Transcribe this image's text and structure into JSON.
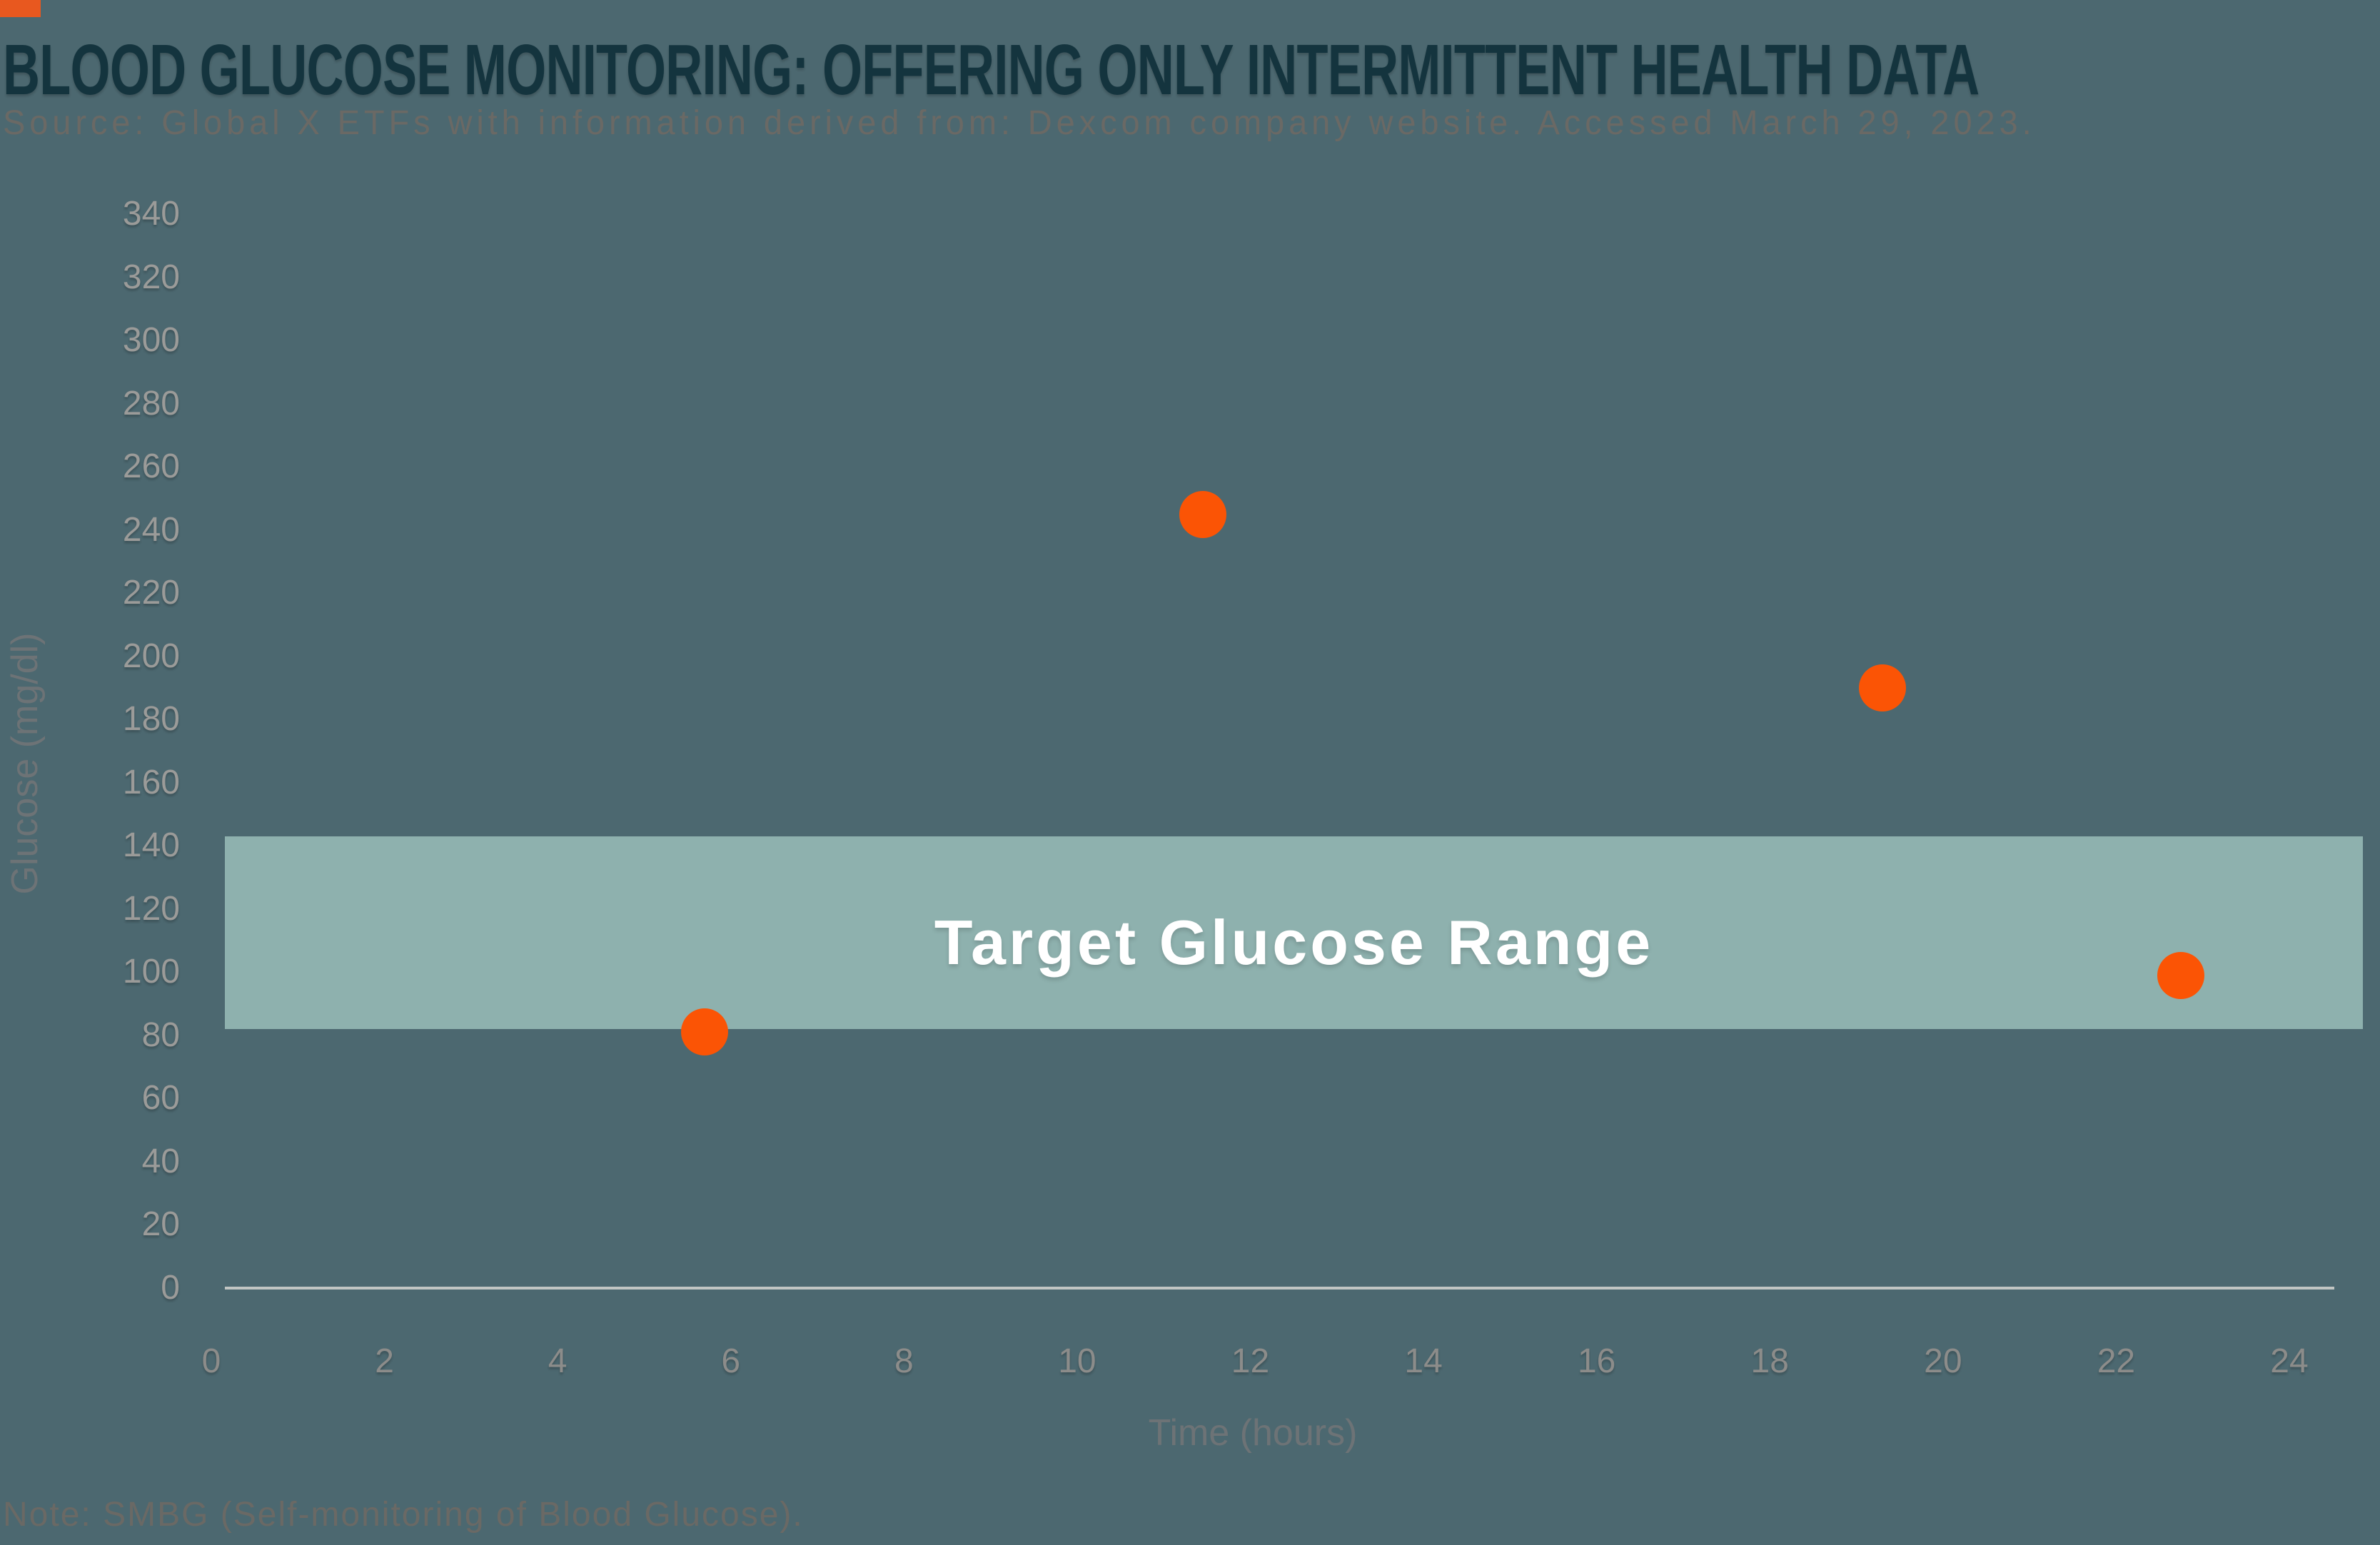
{
  "page": {
    "background_color": "#4C6870",
    "accent_square_color": "#E8581F"
  },
  "header": {
    "title": "BLOOD GLUCOSE MONITORING: OFFERING ONLY INTERMITTENT HEALTH DATA",
    "title_color": "#14343E",
    "source": "Source: Global X ETFs with information derived from: Dexcom company website. Accessed March 29, 2023.",
    "source_color": "#6A6965"
  },
  "footer": {
    "note": "Note: SMBG (Self-monitoring of Blood Glucose).",
    "note_color": "#6A6965"
  },
  "chart_data": {
    "type": "scatter",
    "title": "BLOOD GLUCOSE MONITORING: OFFERING ONLY INTERMITTENT HEALTH DATA",
    "xlabel": "Time (hours)",
    "ylabel": "Glucose (mg/dl)",
    "xlim": [
      0,
      24
    ],
    "xtick_step": 2,
    "ylim": [
      0,
      340
    ],
    "ytick_step": 20,
    "grid": false,
    "legend": "none",
    "points": [
      {
        "x": 5.7,
        "y": 81
      },
      {
        "x": 11.45,
        "y": 245
      },
      {
        "x": 19.3,
        "y": 190
      },
      {
        "x": 22.75,
        "y": 99
      }
    ],
    "point_color": "#FB5405",
    "point_radius_px": 33,
    "target_band": {
      "label": "Target Glucose Range",
      "from": 82,
      "to": 143,
      "band_color": "#8EB1AE",
      "label_color": "#FFFFFF"
    },
    "axis_line_color": "#C1C5C3",
    "y_tick_label_color": "#9B9B99",
    "x_tick_label_color": "#8C8C8A",
    "axis_title_color": "#6D7376"
  }
}
